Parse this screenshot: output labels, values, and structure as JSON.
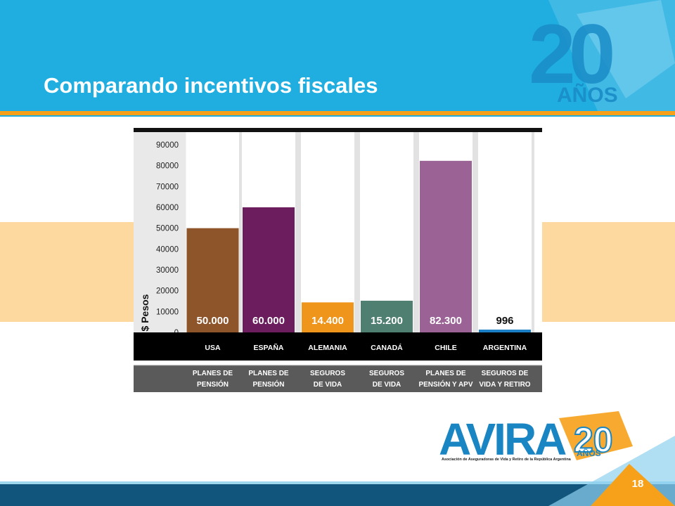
{
  "slide": {
    "title": "Comparando incentivos fiscales",
    "page_number": "18",
    "badge_number": "20",
    "badge_text": "AÑOS"
  },
  "logo": {
    "name": "AVIRA",
    "years": "AÑOS",
    "subtitle": "Asociación de Aseguradoras de Vida y Retiro de la República Argentina"
  },
  "colors": {
    "header_blue": "#1faedf",
    "accent_orange": "#f7a11a",
    "band_peach": "#fdd9a0",
    "footer_navy": "#11557c"
  },
  "chart_data": {
    "type": "bar",
    "ylabel": "$ Pesos",
    "ylim": [
      0,
      90000
    ],
    "yticks": [
      "0",
      "10000",
      "20000",
      "30000",
      "40000",
      "50000",
      "60000",
      "70000",
      "80000",
      "90000"
    ],
    "categories": [
      "USA",
      "ESPAÑA",
      "ALEMANIA",
      "CANADÁ",
      "CHILE",
      "ARGENTINA"
    ],
    "values": [
      50000,
      60000,
      14400,
      15200,
      82300,
      996
    ],
    "value_labels": [
      "50.000",
      "60.000",
      "14.400",
      "15.200",
      "82.300",
      "996"
    ],
    "bar_colors": [
      "#8e552b",
      "#6b1d5e",
      "#f0951c",
      "#4f7f71",
      "#9b6296",
      "#1a7fc4"
    ],
    "plan_types": [
      [
        "PLANES DE",
        "PENSIÓN"
      ],
      [
        "PLANES DE",
        "PENSIÓN"
      ],
      [
        "SEGUROS",
        "DE VIDA"
      ],
      [
        "SEGUROS",
        "DE VIDA"
      ],
      [
        "PLANES DE",
        "PENSIÓN Y APV"
      ],
      [
        "SEGUROS DE",
        "VIDA Y RETIRO"
      ]
    ]
  }
}
